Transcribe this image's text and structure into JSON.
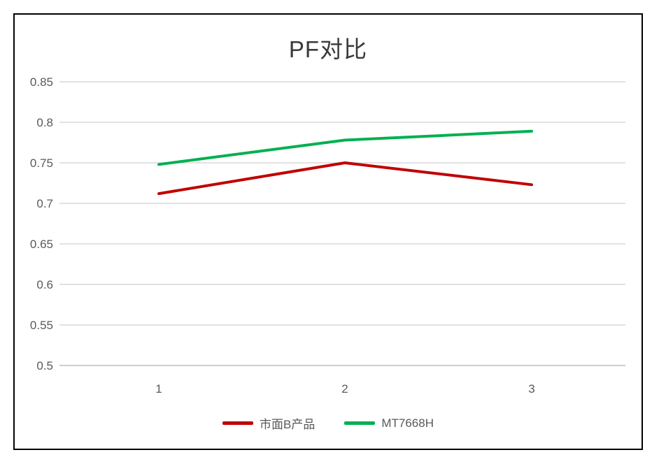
{
  "chart_data": {
    "type": "line",
    "title": "PF对比",
    "categories": [
      "1",
      "2",
      "3"
    ],
    "series": [
      {
        "name": "市面B产品",
        "color": "#C00000",
        "values": [
          0.712,
          0.75,
          0.723
        ]
      },
      {
        "name": "MT7668H",
        "color": "#00B050",
        "values": [
          0.748,
          0.778,
          0.789
        ]
      }
    ],
    "xlabel": "",
    "ylabel": "",
    "ylim": [
      0.5,
      0.85
    ],
    "y_step": 0.05,
    "y_tick_labels": [
      "0.85",
      "0.8",
      "0.75",
      "0.7",
      "0.65",
      "0.6",
      "0.55",
      "0.5"
    ],
    "grid": true,
    "legend_position": "bottom",
    "colors": {
      "gridline": "#D9D9D9",
      "axis_line": "#BFBFBF",
      "tick_text": "#595959",
      "title_text": "#3A3A3A",
      "frame_border": "#000000",
      "background": "#FFFFFF"
    }
  }
}
